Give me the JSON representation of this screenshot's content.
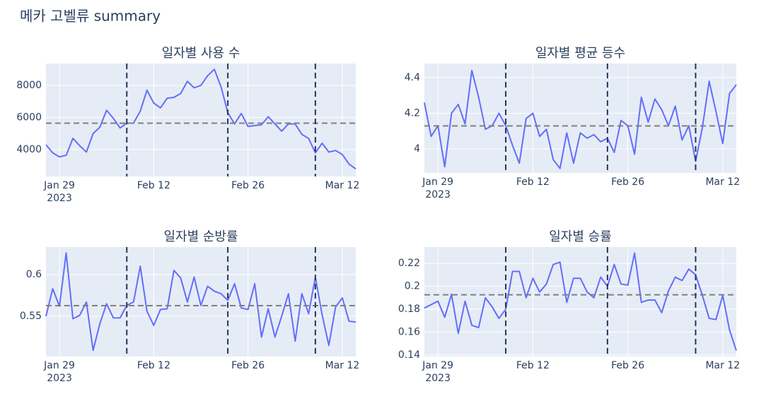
{
  "title": "메카 고벨류 summary",
  "chart_data": [
    {
      "type": "line",
      "title": "일자별 사용 수",
      "color": "#636efa",
      "grid": true,
      "x": [
        "2023-01-27",
        "2023-01-28",
        "2023-01-29",
        "2023-01-30",
        "2023-01-31",
        "2023-02-01",
        "2023-02-02",
        "2023-02-03",
        "2023-02-04",
        "2023-02-05",
        "2023-02-06",
        "2023-02-07",
        "2023-02-08",
        "2023-02-09",
        "2023-02-10",
        "2023-02-11",
        "2023-02-12",
        "2023-02-13",
        "2023-02-14",
        "2023-02-15",
        "2023-02-16",
        "2023-02-17",
        "2023-02-18",
        "2023-02-19",
        "2023-02-20",
        "2023-02-21",
        "2023-02-22",
        "2023-02-23",
        "2023-02-24",
        "2023-02-25",
        "2023-02-26",
        "2023-02-27",
        "2023-02-28",
        "2023-03-01",
        "2023-03-02",
        "2023-03-03",
        "2023-03-04",
        "2023-03-05",
        "2023-03-06",
        "2023-03-07",
        "2023-03-08",
        "2023-03-09",
        "2023-03-10",
        "2023-03-11",
        "2023-03-12",
        "2023-03-13",
        "2023-03-14"
      ],
      "values": [
        4300,
        3800,
        3550,
        3650,
        4700,
        4250,
        3850,
        5000,
        5400,
        6450,
        5950,
        5350,
        5650,
        5650,
        6400,
        7700,
        6900,
        6600,
        7200,
        7250,
        7500,
        8250,
        7850,
        8000,
        8600,
        9000,
        7900,
        6300,
        5600,
        6250,
        5450,
        5500,
        5550,
        6050,
        5600,
        5150,
        5600,
        5600,
        4950,
        4700,
        3800,
        4400,
        3850,
        3950,
        3700,
        3100,
        2800
      ],
      "xlim": [
        "2023-01-27",
        "2023-03-14"
      ],
      "xticks": [
        {
          "value": "2023-01-29",
          "label": "Jan 29"
        },
        {
          "value": "2023-02-12",
          "label": "Feb 12"
        },
        {
          "value": "2023-02-26",
          "label": "Feb 26"
        },
        {
          "value": "2023-03-12",
          "label": "Mar 12"
        }
      ],
      "x_year": "2023",
      "ylim": [
        2330,
        9360
      ],
      "yticks": [
        4000,
        6000,
        8000
      ],
      "hline": 5650,
      "hline_color": "#7f7f7f",
      "vlines": [
        "2023-02-08",
        "2023-02-23",
        "2023-03-08"
      ],
      "vline_color": "#2a3456"
    },
    {
      "type": "line",
      "title": "일자별 평균 등수",
      "color": "#636efa",
      "grid": true,
      "x": [
        "2023-01-27",
        "2023-01-28",
        "2023-01-29",
        "2023-01-30",
        "2023-01-31",
        "2023-02-01",
        "2023-02-02",
        "2023-02-03",
        "2023-02-04",
        "2023-02-05",
        "2023-02-06",
        "2023-02-07",
        "2023-02-08",
        "2023-02-09",
        "2023-02-10",
        "2023-02-11",
        "2023-02-12",
        "2023-02-13",
        "2023-02-14",
        "2023-02-15",
        "2023-02-16",
        "2023-02-17",
        "2023-02-18",
        "2023-02-19",
        "2023-02-20",
        "2023-02-21",
        "2023-02-22",
        "2023-02-23",
        "2023-02-24",
        "2023-02-25",
        "2023-02-26",
        "2023-02-27",
        "2023-02-28",
        "2023-03-01",
        "2023-03-02",
        "2023-03-03",
        "2023-03-04",
        "2023-03-05",
        "2023-03-06",
        "2023-03-07",
        "2023-03-08",
        "2023-03-09",
        "2023-03-10",
        "2023-03-11",
        "2023-03-12",
        "2023-03-13",
        "2023-03-14"
      ],
      "values": [
        4.26,
        4.07,
        4.13,
        3.9,
        4.2,
        4.25,
        4.14,
        4.44,
        4.29,
        4.11,
        4.13,
        4.2,
        4.13,
        4.02,
        3.92,
        4.17,
        4.2,
        4.07,
        4.11,
        3.94,
        3.89,
        4.09,
        3.92,
        4.09,
        4.06,
        4.08,
        4.04,
        4.06,
        3.98,
        4.16,
        4.13,
        3.97,
        4.29,
        4.15,
        4.28,
        4.22,
        4.13,
        4.24,
        4.05,
        4.13,
        3.93,
        4.12,
        4.38,
        4.21,
        4.03,
        4.31,
        4.36
      ],
      "xlim": [
        "2023-01-27",
        "2023-03-14"
      ],
      "xticks": [
        {
          "value": "2023-01-29",
          "label": "Jan 29"
        },
        {
          "value": "2023-02-12",
          "label": "Feb 12"
        },
        {
          "value": "2023-02-26",
          "label": "Feb 26"
        },
        {
          "value": "2023-03-12",
          "label": "Mar 12"
        }
      ],
      "x_year": "2023",
      "ylim": [
        3.865,
        4.479
      ],
      "yticks": [
        4,
        4.2,
        4.4
      ],
      "hline": 4.129,
      "hline_color": "#7f7f7f",
      "vlines": [
        "2023-02-08",
        "2023-02-23",
        "2023-03-08"
      ],
      "vline_color": "#2a3456"
    },
    {
      "type": "line",
      "title": "일자별 순방률",
      "color": "#636efa",
      "grid": true,
      "x": [
        "2023-01-27",
        "2023-01-28",
        "2023-01-29",
        "2023-01-30",
        "2023-01-31",
        "2023-02-01",
        "2023-02-02",
        "2023-02-03",
        "2023-02-04",
        "2023-02-05",
        "2023-02-06",
        "2023-02-07",
        "2023-02-08",
        "2023-02-09",
        "2023-02-10",
        "2023-02-11",
        "2023-02-12",
        "2023-02-13",
        "2023-02-14",
        "2023-02-15",
        "2023-02-16",
        "2023-02-17",
        "2023-02-18",
        "2023-02-19",
        "2023-02-20",
        "2023-02-21",
        "2023-02-22",
        "2023-02-23",
        "2023-02-24",
        "2023-02-25",
        "2023-02-26",
        "2023-02-27",
        "2023-02-28",
        "2023-03-01",
        "2023-03-02",
        "2023-03-03",
        "2023-03-04",
        "2023-03-05",
        "2023-03-06",
        "2023-03-07",
        "2023-03-08",
        "2023-03-09",
        "2023-03-10",
        "2023-03-11",
        "2023-03-12",
        "2023-03-13",
        "2023-03-14"
      ],
      "values": [
        0.55,
        0.583,
        0.562,
        0.626,
        0.547,
        0.551,
        0.567,
        0.509,
        0.541,
        0.565,
        0.548,
        0.548,
        0.563,
        0.567,
        0.61,
        0.556,
        0.539,
        0.558,
        0.559,
        0.605,
        0.596,
        0.567,
        0.597,
        0.563,
        0.586,
        0.58,
        0.577,
        0.569,
        0.589,
        0.56,
        0.558,
        0.589,
        0.525,
        0.559,
        0.525,
        0.55,
        0.577,
        0.52,
        0.577,
        0.553,
        0.597,
        0.552,
        0.515,
        0.561,
        0.572,
        0.544,
        0.543
      ],
      "xlim": [
        "2023-01-27",
        "2023-03-14"
      ],
      "xticks": [
        {
          "value": "2023-01-29",
          "label": "Jan 29"
        },
        {
          "value": "2023-02-12",
          "label": "Feb 12"
        },
        {
          "value": "2023-02-26",
          "label": "Feb 26"
        },
        {
          "value": "2023-03-12",
          "label": "Mar 12"
        }
      ],
      "x_year": "2023",
      "ylim": [
        0.5017,
        0.633
      ],
      "yticks": [
        0.55,
        0.6
      ],
      "hline": 0.5627,
      "hline_color": "#7f7f7f",
      "vlines": [
        "2023-02-08",
        "2023-02-23",
        "2023-03-08"
      ],
      "vline_color": "#2a3456"
    },
    {
      "type": "line",
      "title": "일자별 승률",
      "color": "#636efa",
      "grid": true,
      "x": [
        "2023-01-27",
        "2023-01-28",
        "2023-01-29",
        "2023-01-30",
        "2023-01-31",
        "2023-02-01",
        "2023-02-02",
        "2023-02-03",
        "2023-02-04",
        "2023-02-05",
        "2023-02-06",
        "2023-02-07",
        "2023-02-08",
        "2023-02-09",
        "2023-02-10",
        "2023-02-11",
        "2023-02-12",
        "2023-02-13",
        "2023-02-14",
        "2023-02-15",
        "2023-02-16",
        "2023-02-17",
        "2023-02-18",
        "2023-02-19",
        "2023-02-20",
        "2023-02-21",
        "2023-02-22",
        "2023-02-23",
        "2023-02-24",
        "2023-02-25",
        "2023-02-26",
        "2023-02-27",
        "2023-02-28",
        "2023-03-01",
        "2023-03-02",
        "2023-03-03",
        "2023-03-04",
        "2023-03-05",
        "2023-03-06",
        "2023-03-07",
        "2023-03-08",
        "2023-03-09",
        "2023-03-10",
        "2023-03-11",
        "2023-03-12",
        "2023-03-13",
        "2023-03-14"
      ],
      "values": [
        0.181,
        0.184,
        0.187,
        0.173,
        0.193,
        0.159,
        0.187,
        0.166,
        0.164,
        0.19,
        0.182,
        0.172,
        0.18,
        0.213,
        0.213,
        0.19,
        0.207,
        0.195,
        0.202,
        0.219,
        0.221,
        0.186,
        0.207,
        0.207,
        0.195,
        0.19,
        0.208,
        0.2,
        0.219,
        0.202,
        0.201,
        0.229,
        0.186,
        0.188,
        0.188,
        0.177,
        0.196,
        0.208,
        0.205,
        0.215,
        0.21,
        0.192,
        0.172,
        0.171,
        0.192,
        0.162,
        0.144
      ],
      "xlim": [
        "2023-01-27",
        "2023-03-14"
      ],
      "xticks": [
        {
          "value": "2023-01-29",
          "label": "Jan 29"
        },
        {
          "value": "2023-02-12",
          "label": "Feb 12"
        },
        {
          "value": "2023-02-26",
          "label": "Feb 26"
        },
        {
          "value": "2023-03-12",
          "label": "Mar 12"
        }
      ],
      "x_year": "2023",
      "ylim": [
        0.1388,
        0.2342
      ],
      "yticks": [
        0.14,
        0.16,
        0.18,
        0.2,
        0.22
      ],
      "hline": 0.1926,
      "hline_color": "#7f7f7f",
      "vlines": [
        "2023-02-08",
        "2023-02-23",
        "2023-03-08"
      ],
      "vline_color": "#2a3456"
    }
  ]
}
